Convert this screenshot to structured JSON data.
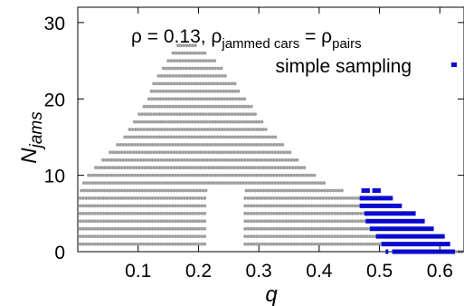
{
  "chart_data": {
    "type": "scatter",
    "title": "",
    "xlabel": "q",
    "ylabel_main": "N",
    "ylabel_sub": "jams",
    "xlim": [
      0.0,
      0.64
    ],
    "ylim": [
      0,
      32
    ],
    "x_ticks": [
      "0.1",
      "0.2",
      "0.3",
      "0.4",
      "0.5",
      "0.6"
    ],
    "x_tick_values": [
      0.1,
      0.2,
      0.3,
      0.4,
      0.5,
      0.6
    ],
    "y_ticks": [
      "0",
      "10",
      "20",
      "30"
    ],
    "y_tick_values": [
      0,
      10,
      20,
      30
    ],
    "grid": false,
    "legend_position": "top-right",
    "annotation": {
      "rho_text": "ρ = 0.13,  ρ",
      "sub1": "jammed cars",
      "eq_text": " = ρ",
      "sub2": "pairs"
    },
    "series": [
      {
        "name": "",
        "color": "#a0a0a0",
        "rows": [
          {
            "y": 27,
            "x0": 0.166,
            "x1": 0.198
          },
          {
            "y": 26,
            "x0": 0.158,
            "x1": 0.214
          },
          {
            "y": 25,
            "x0": 0.15,
            "x1": 0.23
          },
          {
            "y": 24,
            "x0": 0.142,
            "x1": 0.238
          },
          {
            "y": 23,
            "x0": 0.134,
            "x1": 0.248
          },
          {
            "y": 22,
            "x0": 0.126,
            "x1": 0.262
          },
          {
            "y": 21,
            "x0": 0.122,
            "x1": 0.27
          },
          {
            "y": 20,
            "x0": 0.118,
            "x1": 0.278
          },
          {
            "y": 19,
            "x0": 0.11,
            "x1": 0.288
          },
          {
            "y": 18,
            "x0": 0.102,
            "x1": 0.296
          },
          {
            "y": 17,
            "x0": 0.094,
            "x1": 0.306
          },
          {
            "y": 16,
            "x0": 0.086,
            "x1": 0.316
          },
          {
            "y": 15,
            "x0": 0.078,
            "x1": 0.328
          },
          {
            "y": 14,
            "x0": 0.066,
            "x1": 0.34
          },
          {
            "y": 13,
            "x0": 0.054,
            "x1": 0.352
          },
          {
            "y": 12,
            "x0": 0.042,
            "x1": 0.364
          },
          {
            "y": 11,
            "x0": 0.03,
            "x1": 0.38
          },
          {
            "y": 10,
            "x0": 0.018,
            "x1": 0.395
          },
          {
            "y": 9,
            "x0": 0.01,
            "x1": 0.41
          },
          {
            "y": 8,
            "x0": 0.006,
            "x1": 0.44
          },
          {
            "y": 7,
            "x0": 0.004,
            "x1": 0.47
          },
          {
            "y": 6,
            "x0": 0.004,
            "x1": 0.5
          },
          {
            "y": 5,
            "x0": 0.004,
            "x1": 0.53
          },
          {
            "y": 4,
            "x0": 0.004,
            "x1": 0.555
          },
          {
            "y": 3,
            "x0": 0.004,
            "x1": 0.58
          },
          {
            "y": 2,
            "x0": 0.004,
            "x1": 0.6
          },
          {
            "y": 1,
            "x0": 0.004,
            "x1": 0.615
          },
          {
            "y": 0,
            "x0": 0.54,
            "x1": 0.64
          }
        ],
        "gap": {
          "x0": 0.215,
          "x1": 0.275,
          "ymax": 8
        }
      },
      {
        "name": "simple sampling",
        "color": "#0a0ad0",
        "rows": [
          {
            "y": 8,
            "x0": 0.47,
            "x1": 0.484
          },
          {
            "y": 8,
            "x0": 0.488,
            "x1": 0.502
          },
          {
            "y": 7,
            "x0": 0.467,
            "x1": 0.522
          },
          {
            "y": 6,
            "x0": 0.467,
            "x1": 0.537
          },
          {
            "y": 5,
            "x0": 0.475,
            "x1": 0.56
          },
          {
            "y": 4,
            "x0": 0.477,
            "x1": 0.575
          },
          {
            "y": 3,
            "x0": 0.484,
            "x1": 0.59
          },
          {
            "y": 2,
            "x0": 0.494,
            "x1": 0.608
          },
          {
            "y": 1,
            "x0": 0.503,
            "x1": 0.617
          },
          {
            "y": 0,
            "x0": 0.51,
            "x1": 0.513
          },
          {
            "y": 0,
            "x0": 0.521,
            "x1": 0.625
          }
        ]
      }
    ]
  }
}
